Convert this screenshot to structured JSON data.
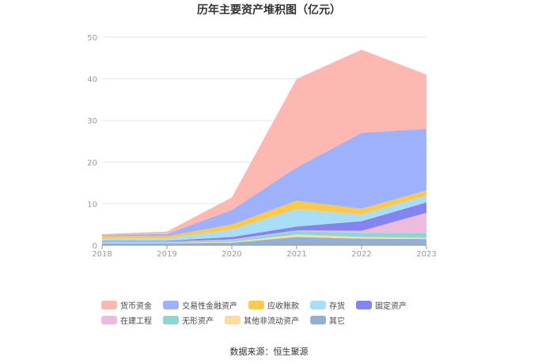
{
  "page": {
    "source_text": "数据来源：恒生聚源"
  },
  "chart_data": {
    "type": "area",
    "stacked": true,
    "title": "历年主要资产堆积图（亿元）",
    "xlabel": "",
    "ylabel": "",
    "x": [
      "2018",
      "2019",
      "2020",
      "2021",
      "2022",
      "2023"
    ],
    "ylim": [
      0,
      50
    ],
    "yticks": [
      0,
      10,
      20,
      30,
      40,
      50
    ],
    "grid": true,
    "legend_position": "bottom",
    "series": [
      {
        "name": "其它",
        "color": "#94aed6",
        "values": [
          0.5,
          0.5,
          0.6,
          2.0,
          1.6,
          1.5
        ]
      },
      {
        "name": "其他非流动资产",
        "color": "#fddca0",
        "values": [
          0.1,
          0.1,
          0.2,
          0.6,
          0.4,
          0.3
        ]
      },
      {
        "name": "无形资产",
        "color": "#8ad8d6",
        "values": [
          0.3,
          0.3,
          0.4,
          0.8,
          1.0,
          1.2
        ]
      },
      {
        "name": "在建工程",
        "color": "#ecbcdf",
        "values": [
          0.0,
          0.0,
          0.2,
          0.2,
          0.5,
          4.8
        ]
      },
      {
        "name": "固定资产",
        "color": "#8483f2",
        "values": [
          0.2,
          0.2,
          0.6,
          0.9,
          2.3,
          2.5
        ]
      },
      {
        "name": "存货",
        "color": "#a9def9",
        "values": [
          0.6,
          0.6,
          1.8,
          4.2,
          1.6,
          1.7
        ]
      },
      {
        "name": "应收账款",
        "color": "#fdc94c",
        "values": [
          0.5,
          0.5,
          1.2,
          2.0,
          1.4,
          1.2
        ]
      },
      {
        "name": "交易性金融资产",
        "color": "#9db1fd",
        "values": [
          0.3,
          0.5,
          3.5,
          8.0,
          18.2,
          14.8
        ]
      },
      {
        "name": "货币资金",
        "color": "#fdb8b2",
        "values": [
          0.2,
          0.6,
          3.0,
          21.3,
          20.0,
          13.0
        ]
      }
    ],
    "legend_order": [
      "货币资金",
      "交易性金融资产",
      "应收账款",
      "存货",
      "固定资产",
      "在建工程",
      "无形资产",
      "其他非流动资产",
      "其它"
    ]
  }
}
